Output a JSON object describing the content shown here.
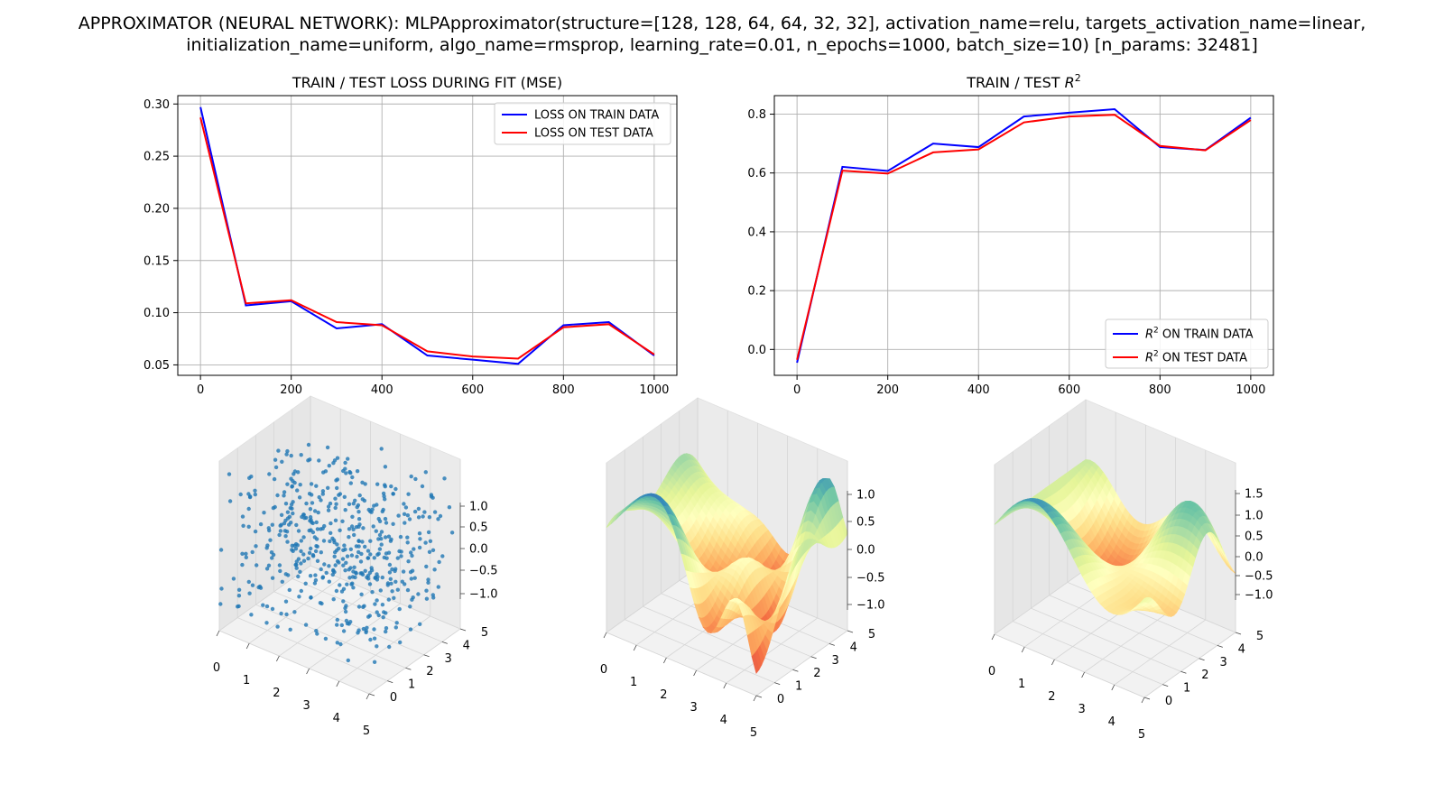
{
  "figure": {
    "suptitle_line1": "APPROXIMATOR (NEURAL NETWORK): MLPApproximator(structure=[128, 128, 64, 64, 32, 32], activation_name=relu, targets_activation_name=linear,",
    "suptitle_line2": "initialization_name=uniform, algo_name=rmsprop, learning_rate=0.01, n_epochs=1000, batch_size=10) [n_params: 32481]"
  },
  "colors": {
    "train": "#0000ff",
    "test": "#ff0000",
    "grid": "#b0b0b0",
    "scatter": "#1f77b4"
  },
  "chart_data": [
    {
      "type": "line",
      "title": "TRAIN / TEST LOSS DURING FIT (MSE)",
      "x": [
        0,
        100,
        200,
        300,
        400,
        500,
        600,
        700,
        800,
        900,
        1000
      ],
      "xticks": [
        0,
        200,
        400,
        600,
        800,
        1000
      ],
      "yticks": [
        0.05,
        0.1,
        0.15,
        0.2,
        0.25,
        0.3
      ],
      "ytick_labels": [
        "0.05",
        "0.10",
        "0.15",
        "0.20",
        "0.25",
        "0.30"
      ],
      "xlim": [
        -50,
        1050
      ],
      "ylim": [
        0.04,
        0.308
      ],
      "grid": true,
      "legend": "upper right",
      "series": [
        {
          "name": "LOSS ON TRAIN DATA",
          "color": "#0000ff",
          "values": [
            0.297,
            0.107,
            0.111,
            0.085,
            0.089,
            0.059,
            0.055,
            0.051,
            0.088,
            0.091,
            0.059
          ]
        },
        {
          "name": "LOSS ON TEST DATA",
          "color": "#ff0000",
          "values": [
            0.287,
            0.109,
            0.112,
            0.091,
            0.088,
            0.063,
            0.058,
            0.056,
            0.086,
            0.089,
            0.06
          ]
        }
      ]
    },
    {
      "type": "line",
      "title_pre": "TRAIN / TEST ",
      "title_sym": "R",
      "title_sup": "2",
      "x": [
        0,
        100,
        200,
        300,
        400,
        500,
        600,
        700,
        800,
        900,
        1000
      ],
      "xticks": [
        0,
        200,
        400,
        600,
        800,
        1000
      ],
      "yticks": [
        0.0,
        0.2,
        0.4,
        0.6,
        0.8
      ],
      "ytick_labels": [
        "0.0",
        "0.2",
        "0.4",
        "0.6",
        "0.8"
      ],
      "xlim": [
        -50,
        1050
      ],
      "ylim": [
        -0.088,
        0.863
      ],
      "grid": true,
      "legend": "lower right",
      "series": [
        {
          "name_sym": "R",
          "name_sup": "2",
          "name_rest": " ON TRAIN DATA",
          "color": "#0000ff",
          "values": [
            -0.045,
            0.621,
            0.607,
            0.7,
            0.688,
            0.792,
            0.805,
            0.817,
            0.688,
            0.678,
            0.788
          ]
        },
        {
          "name_sym": "R",
          "name_sup": "2",
          "name_rest": " ON TEST DATA",
          "color": "#ff0000",
          "values": [
            -0.035,
            0.608,
            0.598,
            0.67,
            0.68,
            0.772,
            0.792,
            0.798,
            0.692,
            0.677,
            0.78
          ]
        }
      ]
    },
    {
      "type": "scatter",
      "xticks": [
        "0",
        "1",
        "2",
        "3",
        "4",
        "5"
      ],
      "yticks": [
        "0",
        "1",
        "2",
        "3",
        "4",
        "5"
      ],
      "zticks": [
        "1.0",
        "0.5",
        "0.0",
        "−0.5",
        "−1.0"
      ]
    },
    {
      "type": "surface",
      "xticks": [
        "0",
        "1",
        "2",
        "3",
        "4",
        "5"
      ],
      "yticks": [
        "0",
        "1",
        "2",
        "3",
        "4",
        "5"
      ],
      "zticks": [
        "1.0",
        "0.5",
        "0.0",
        "−0.5",
        "−1.0"
      ]
    },
    {
      "type": "surface",
      "xticks": [
        "0",
        "1",
        "2",
        "3",
        "4",
        "5"
      ],
      "yticks": [
        "0",
        "1",
        "2",
        "3",
        "4",
        "5"
      ],
      "zticks": [
        "1.5",
        "1.0",
        "0.5",
        "0.0",
        "−0.5",
        "−1.0"
      ]
    }
  ]
}
